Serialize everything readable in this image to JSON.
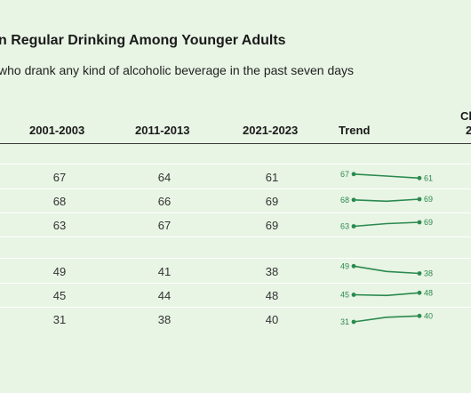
{
  "title": "n Regular Drinking Among Younger Adults",
  "subtitle": "who drank any kind of alcoholic beverage in the past seven days",
  "columns": [
    "2001-2003",
    "2011-2013",
    "2021-2023",
    "Trend"
  ],
  "clipped_header": [
    "Cl",
    "2"
  ],
  "colors": {
    "background": "#e8f4e4",
    "trend": "#2a8a4e"
  },
  "chart_data": {
    "type": "table",
    "columns": [
      "2001-2003",
      "2011-2013",
      "2021-2023"
    ],
    "rows": [
      {
        "values": [
          67,
          64,
          61
        ]
      },
      {
        "values": [
          68,
          66,
          69
        ]
      },
      {
        "values": [
          63,
          67,
          69
        ]
      },
      {
        "values": [
          49,
          41,
          38
        ]
      },
      {
        "values": [
          45,
          44,
          48
        ]
      },
      {
        "values": [
          31,
          38,
          40
        ]
      }
    ]
  }
}
